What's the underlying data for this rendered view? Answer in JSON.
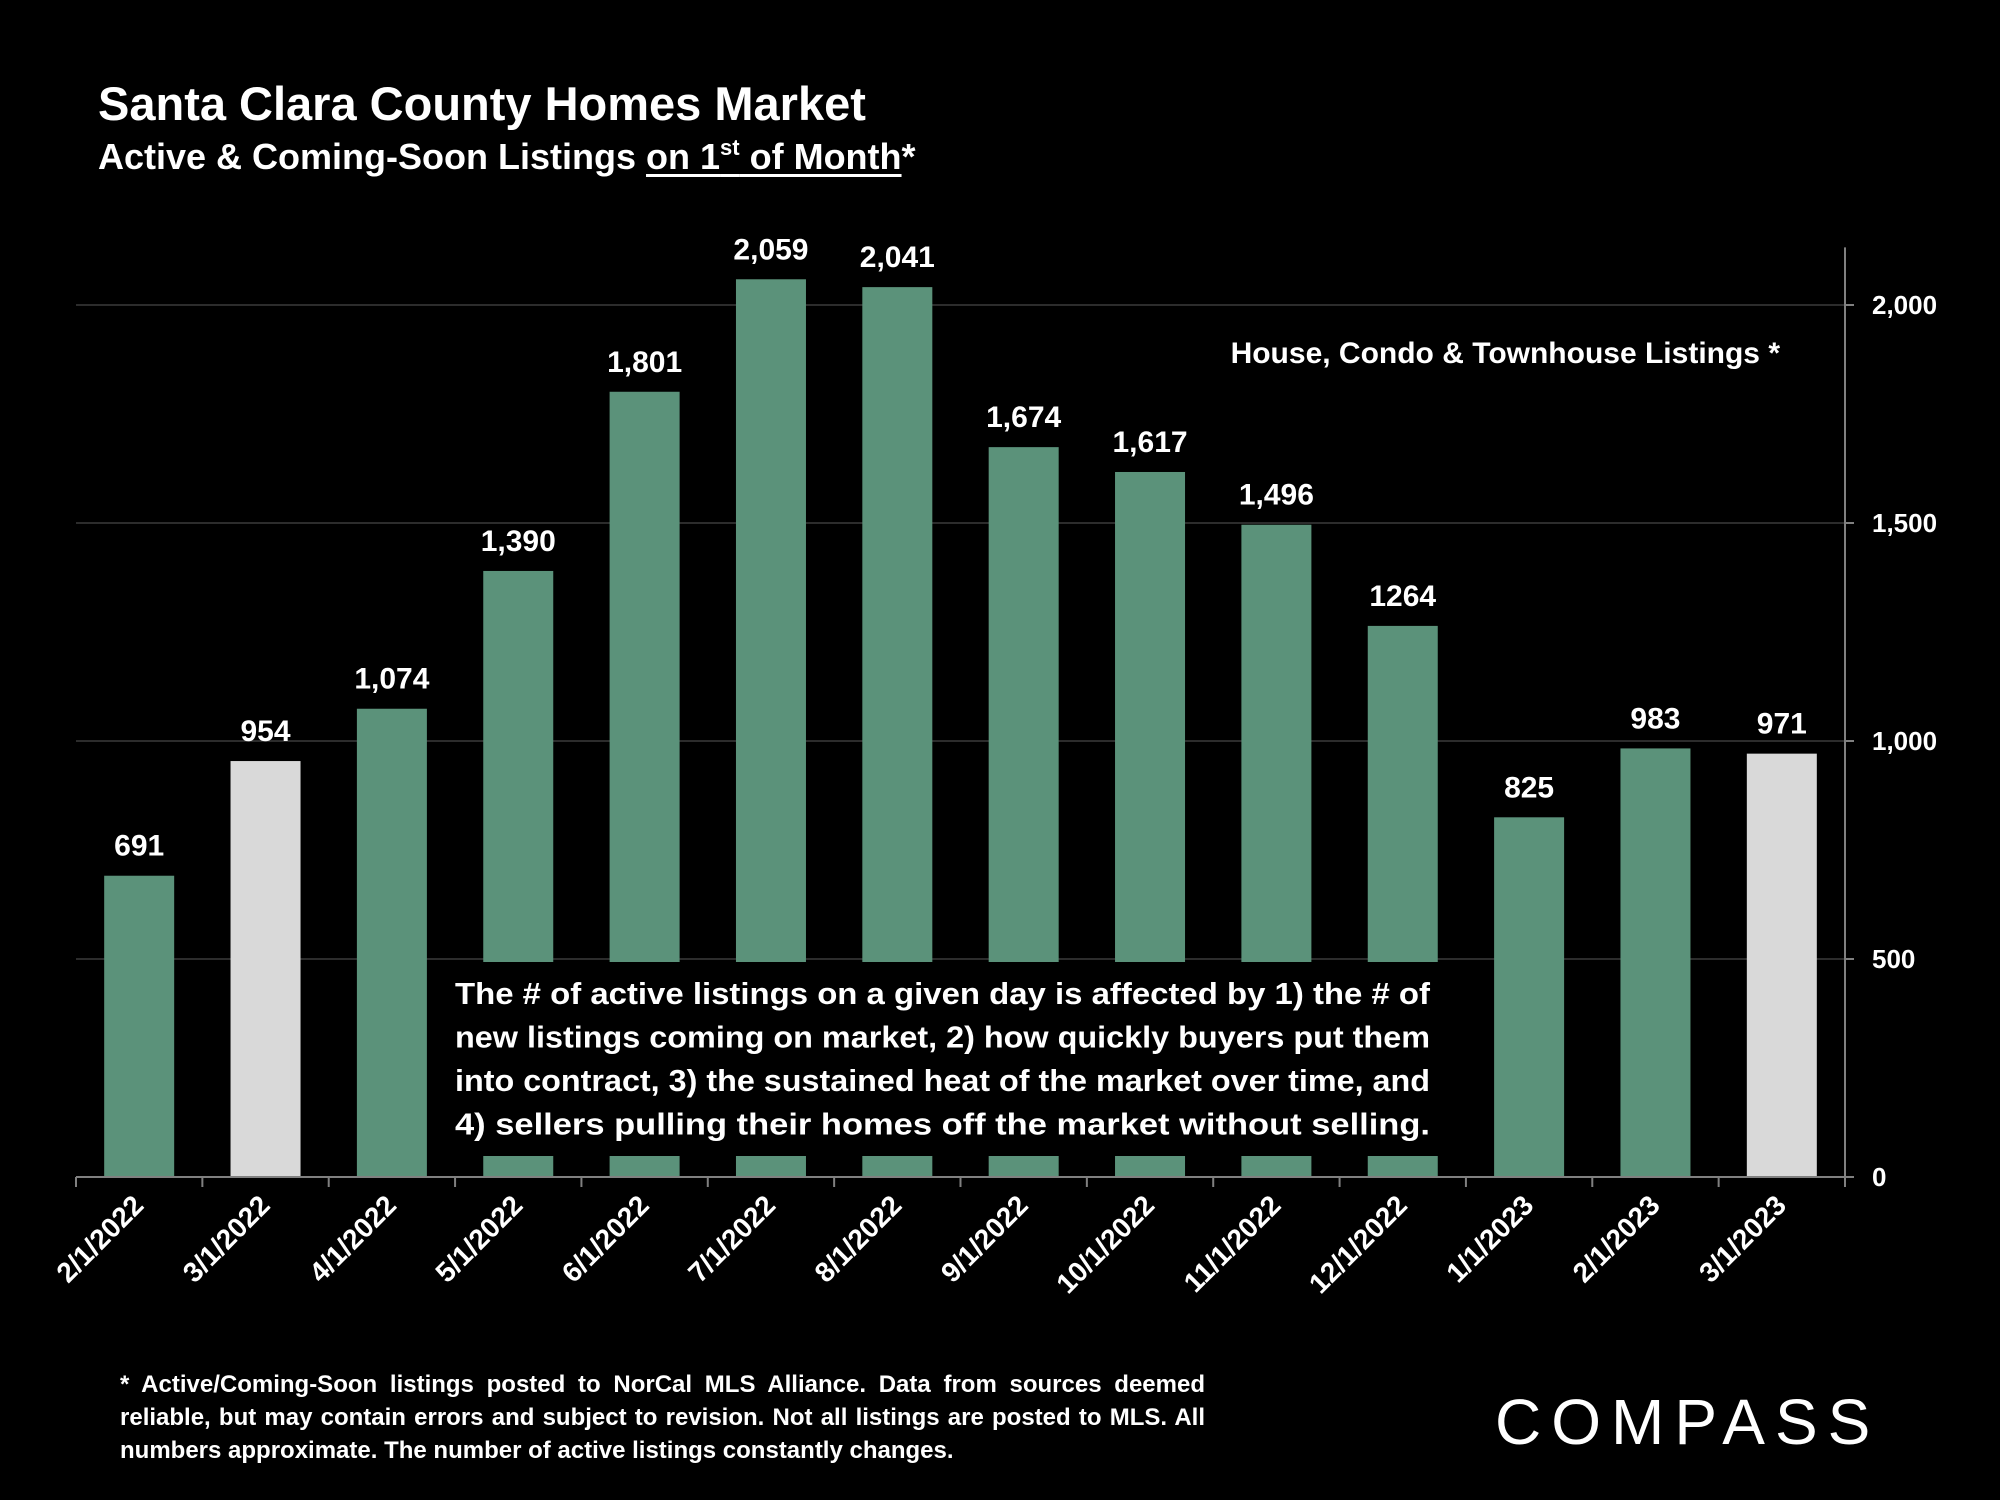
{
  "header": {
    "title": "Santa Clara County Homes Market",
    "subtitle_prefix": "Active & Coming-Soon Listings ",
    "subtitle_underlined": "on 1",
    "subtitle_sup": "st",
    "subtitle_underlined_2": " of Month",
    "subtitle_suffix": "*"
  },
  "chart_data": {
    "type": "bar",
    "categories": [
      "2/1/2022",
      "3/1/2022",
      "4/1/2022",
      "5/1/2022",
      "6/1/2022",
      "7/1/2022",
      "8/1/2022",
      "9/1/2022",
      "10/1/2022",
      "11/1/2022",
      "12/1/2022",
      "1/1/2023",
      "2/1/2023",
      "3/1/2023"
    ],
    "values": [
      691,
      954,
      1074,
      1390,
      1801,
      2059,
      2041,
      1674,
      1617,
      1496,
      1264,
      825,
      983,
      971
    ],
    "value_labels": [
      "691",
      "954",
      "1,074",
      "1,390",
      "1,801",
      "2,059",
      "2,041",
      "1,674",
      "1,617",
      "1,496",
      "1264",
      "825",
      "983",
      "971"
    ],
    "highlighted": [
      "3/1/2022",
      "3/1/2023"
    ],
    "ylim": [
      0,
      2100
    ],
    "yticks": [
      0,
      500,
      1000,
      1500,
      2000
    ],
    "ytick_labels": [
      "0",
      "500",
      "1,000",
      "1,500",
      "2,000"
    ],
    "y_axis_side": "right",
    "grid": true,
    "colors": {
      "bar": "#5b927a",
      "highlight": "#d9d9d9",
      "grid": "#3a3a3a",
      "background": "#000000"
    },
    "legend_text": "House, Condo & Townhouse Listings *",
    "annotation_lines": [
      "The # of active listings on a given day is affected by 1) the # of",
      "new listings coming on market, 2) how quickly buyers put them",
      "into contract, 3) the sustained heat of the market over time, and",
      "4) sellers pulling their homes off the market without selling."
    ]
  },
  "footnote": "* Active/Coming-Soon listings posted to NorCal MLS Alliance.  Data from sources deemed reliable, but may contain errors and subject to revision.  Not all listings are posted to MLS. All numbers approximate. The number of active listings constantly changes.",
  "logo": {
    "text": "COMPASS"
  }
}
